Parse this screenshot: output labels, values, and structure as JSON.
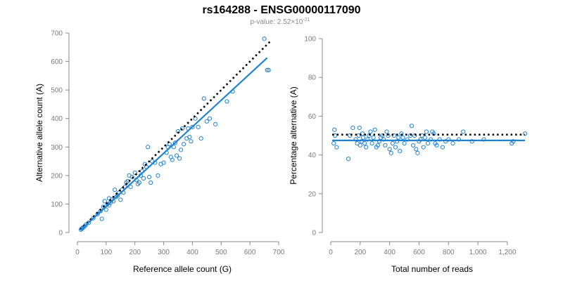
{
  "header": {
    "title": "rs164288 - ENSG00000117090",
    "subtitle_prefix": "p-value: 2.52×10",
    "subtitle_exponent": "-21"
  },
  "colors": {
    "points": "#1f82d2",
    "fit_line": "#1f82d2",
    "reference_line": "#000000"
  },
  "chart_data": [
    {
      "type": "scatter",
      "xlabel": "Reference allele count (G)",
      "ylabel": "Alternative allele count (A)",
      "xlim": [
        0,
        700
      ],
      "ylim": [
        0,
        700
      ],
      "xticks": [
        0,
        100,
        200,
        300,
        400,
        500,
        600,
        700
      ],
      "yticks": [
        0,
        100,
        200,
        300,
        400,
        500,
        600,
        700
      ],
      "xtick_labels": [
        "0",
        "100",
        "200",
        "300",
        "400",
        "500",
        "600",
        "700"
      ],
      "ytick_labels": [
        "0",
        "100",
        "200",
        "300",
        "400",
        "500",
        "600",
        "700"
      ],
      "fit_line": {
        "x": [
          10,
          660
        ],
        "y": [
          8,
          613
        ]
      },
      "reference_line": {
        "x": [
          10,
          670
        ],
        "y": [
          10,
          670
        ]
      },
      "points": {
        "x": [
          12,
          15,
          18,
          20,
          25,
          30,
          40,
          55,
          70,
          80,
          85,
          90,
          95,
          100,
          105,
          110,
          110,
          115,
          120,
          125,
          130,
          135,
          140,
          145,
          150,
          155,
          160,
          165,
          170,
          175,
          180,
          185,
          190,
          200,
          205,
          210,
          215,
          220,
          225,
          230,
          235,
          240,
          245,
          250,
          255,
          260,
          270,
          280,
          290,
          300,
          310,
          315,
          320,
          325,
          330,
          335,
          340,
          345,
          350,
          355,
          360,
          365,
          370,
          380,
          385,
          390,
          395,
          400,
          410,
          420,
          430,
          440,
          450,
          460,
          480,
          520,
          540,
          650,
          660,
          665
        ],
        "y": [
          10,
          14,
          15,
          18,
          22,
          28,
          35,
          50,
          65,
          75,
          48,
          90,
          110,
          80,
          100,
          95,
          120,
          105,
          115,
          110,
          150,
          125,
          130,
          140,
          115,
          150,
          140,
          160,
          175,
          180,
          200,
          160,
          195,
          210,
          185,
          170,
          175,
          200,
          215,
          190,
          240,
          230,
          300,
          195,
          175,
          250,
          245,
          200,
          240,
          245,
          280,
          300,
          310,
          265,
          255,
          300,
          315,
          270,
          355,
          260,
          290,
          365,
          310,
          330,
          365,
          335,
          320,
          370,
          400,
          370,
          330,
          470,
          390,
          400,
          380,
          460,
          495,
          680,
          570,
          570
        ]
      }
    },
    {
      "type": "scatter",
      "xlabel": "Total number of reads",
      "ylabel": "Percentage alternative (A)",
      "xlim": [
        0,
        1320
      ],
      "ylim": [
        0,
        100
      ],
      "xticks": [
        0,
        200,
        400,
        600,
        800,
        1000,
        1200
      ],
      "yticks": [
        0,
        20,
        40,
        60,
        80,
        100
      ],
      "xtick_labels": [
        "0",
        "200",
        "400",
        "600",
        "800",
        "1,000",
        "1,200"
      ],
      "ytick_labels": [
        "0",
        "20",
        "40",
        "60",
        "80",
        "100"
      ],
      "fit_line": {
        "x": [
          10,
          1320
        ],
        "y": [
          47.5,
          47.5
        ]
      },
      "reference_line": {
        "x": [
          10,
          1320
        ],
        "y": [
          50.5,
          50.5
        ]
      },
      "points": {
        "x": [
          20,
          25,
          30,
          40,
          120,
          130,
          150,
          170,
          180,
          190,
          195,
          200,
          210,
          215,
          220,
          230,
          240,
          250,
          260,
          270,
          280,
          290,
          300,
          310,
          320,
          330,
          340,
          350,
          360,
          370,
          380,
          390,
          400,
          410,
          420,
          430,
          440,
          450,
          460,
          470,
          480,
          490,
          500,
          520,
          540,
          550,
          560,
          570,
          580,
          590,
          600,
          610,
          620,
          630,
          640,
          650,
          660,
          680,
          690,
          700,
          710,
          720,
          740,
          760,
          780,
          800,
          830,
          870,
          900,
          960,
          1040,
          1230,
          1240,
          1320
        ],
        "y": [
          46,
          53,
          50,
          44,
          38,
          50,
          54,
          48,
          46,
          50,
          54,
          45,
          47,
          51,
          49,
          46,
          44,
          48,
          50,
          52,
          46,
          49,
          53,
          44,
          45,
          47,
          49,
          50,
          48,
          45,
          52,
          50,
          43,
          41,
          46,
          50,
          44,
          47,
          49,
          42,
          51,
          49,
          46,
          48,
          50,
          55,
          45,
          50,
          43,
          41,
          47,
          48,
          50,
          44,
          49,
          52,
          46,
          48,
          52,
          51,
          46,
          45,
          48,
          44,
          47,
          48,
          46,
          48,
          52,
          47,
          48,
          46,
          47,
          51
        ]
      }
    }
  ]
}
